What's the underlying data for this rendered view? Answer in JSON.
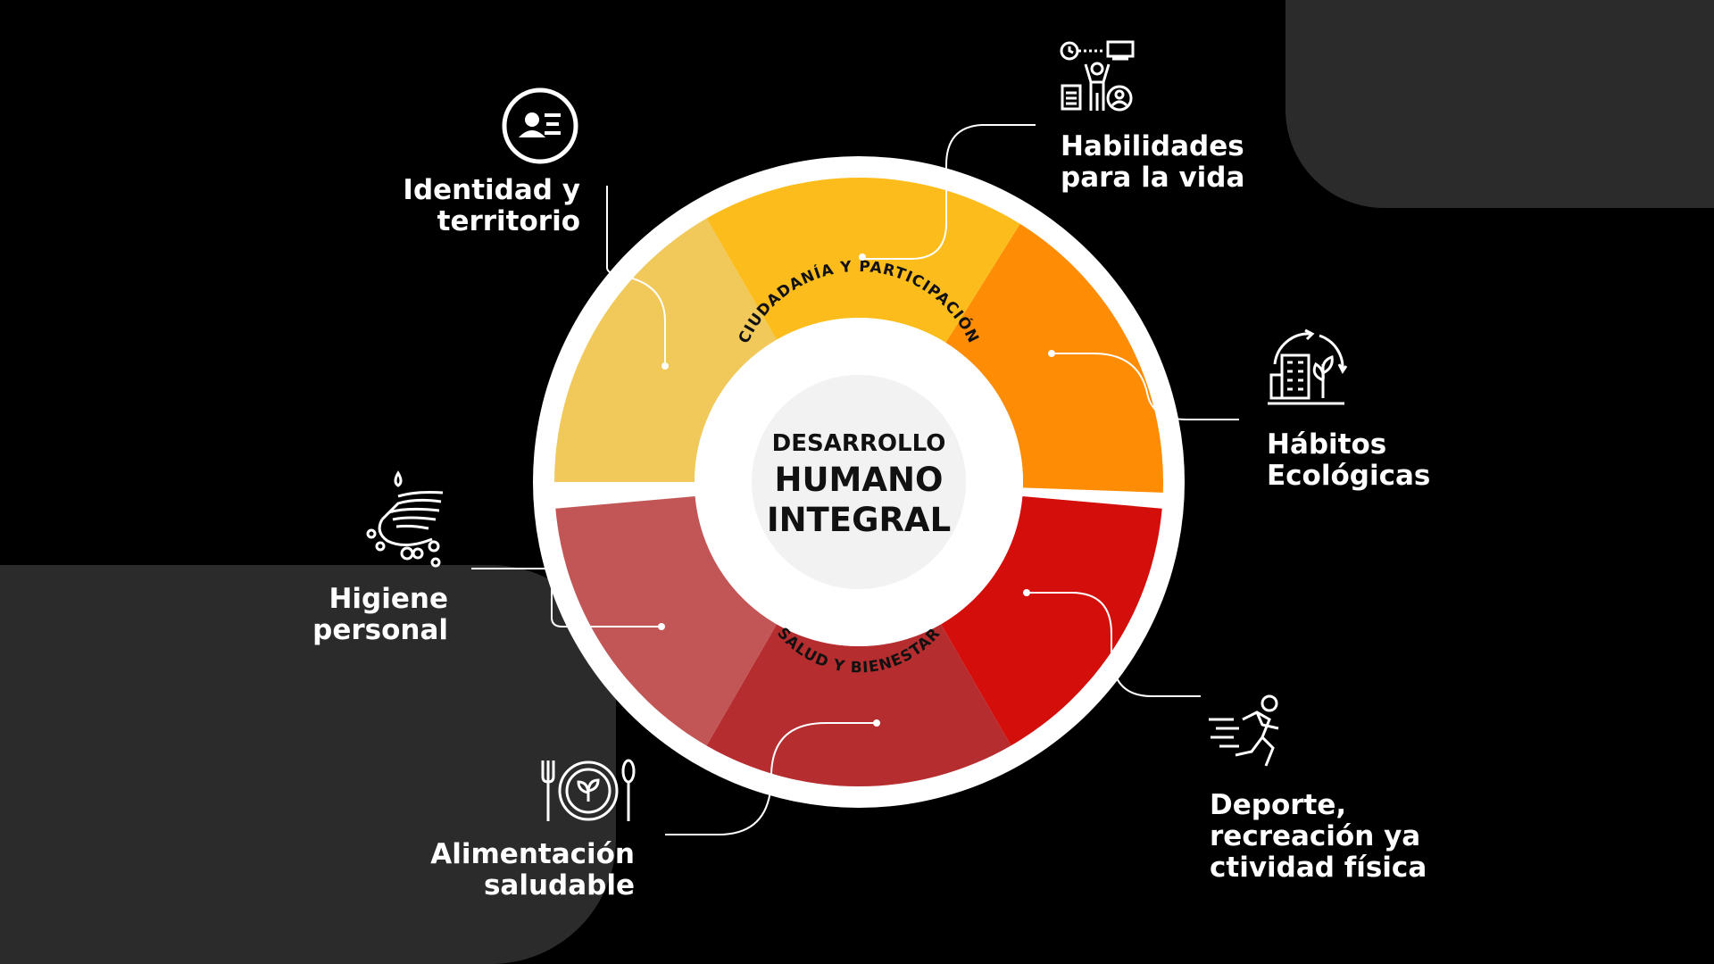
{
  "center": {
    "line1": "DESARROLLO",
    "line2": "HUMANO",
    "line3": "INTEGRAL",
    "top_arc": "CIUDADANÍA Y PARTICIPACIÓN",
    "bottom_arc": "SALUD Y BIENESTAR"
  },
  "segments": [
    {
      "name": "Identidad y territorio",
      "color": "#f0c95a"
    },
    {
      "name": "Habilidades para la vida",
      "color": "#fcbd1c"
    },
    {
      "name": "Hábitos Ecológicas",
      "color": "#fe8c04"
    },
    {
      "name": "Deporte, recreación y actividad física",
      "color": "#d40f0b"
    },
    {
      "name": "Alimentación saludable",
      "color": "#b62d2f"
    },
    {
      "name": "Higiene personal",
      "color": "#c25656"
    }
  ],
  "labels": {
    "identidad": "Identidad y\nterritorio",
    "habilidades": "Habilidades\npara la vida",
    "habitos": "Hábitos\nEcológicas",
    "deporte": "Deporte,\nrecreación ya\nctividad física",
    "alimentacion": "Alimentación\nsaludable",
    "higiene": "Higiene\npersonal"
  },
  "icons": {
    "identidad": "id-card-icon",
    "habilidades": "skills-workflow-icon",
    "habitos": "eco-building-icon",
    "deporte": "running-person-icon",
    "alimentacion": "plate-with-cutlery-icon",
    "higiene": "washing-hands-icon"
  },
  "colors": {
    "background": "#000000",
    "panel": "#2b2b2b",
    "ring": "#ffffff",
    "center": "#f4f4f4"
  }
}
